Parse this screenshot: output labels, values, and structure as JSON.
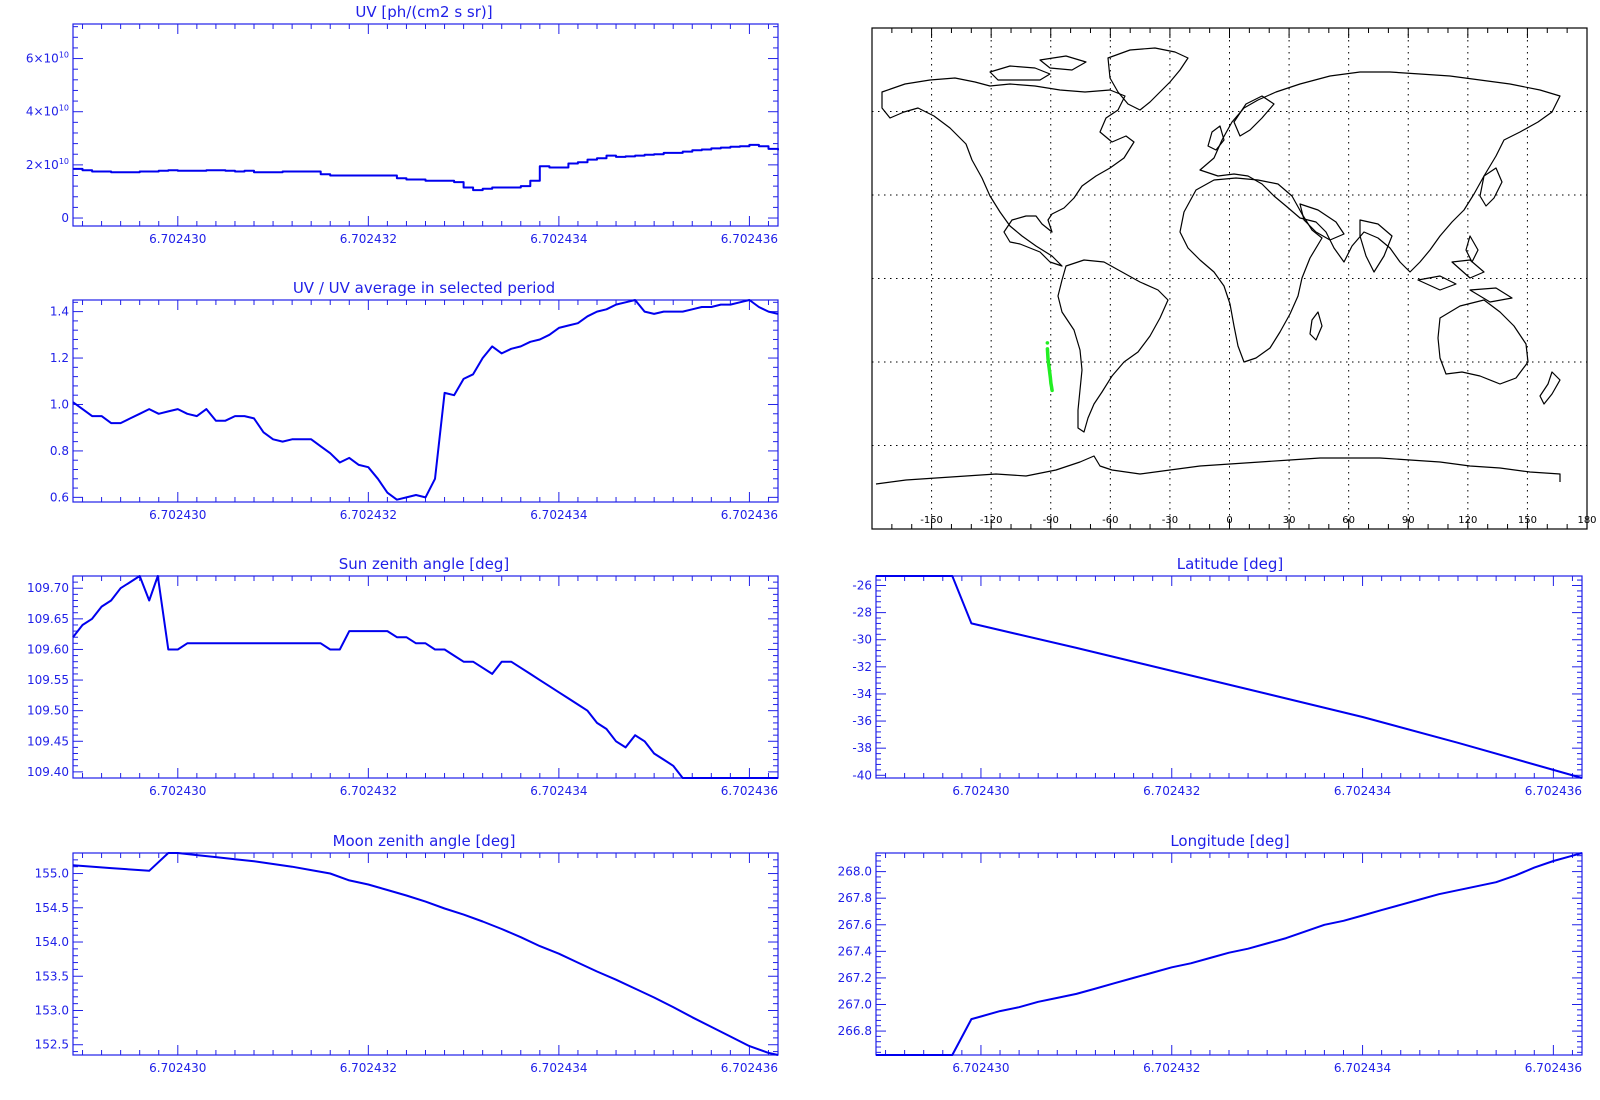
{
  "colors": {
    "axis": "#2020e8",
    "series": "#0000ee",
    "map_axis": "#000000",
    "coast": "#000000",
    "track": "#22ee22"
  },
  "chart_data": [
    {
      "id": "uv",
      "type": "line",
      "step": true,
      "title": "UV [ph/(cm2 s sr)]",
      "xlim": [
        6.7024289,
        6.7024363
      ],
      "ylim": [
        -3000000000.0,
        73000000000.0
      ],
      "xticks": [
        6.70243,
        6.702432,
        6.702434,
        6.702436
      ],
      "xtick_labels": [
        "6.702430",
        "6.702432",
        "6.702434",
        "6.702436"
      ],
      "yticks": [
        0,
        20000000000.0,
        40000000000.0,
        60000000000.0
      ],
      "ytick_labels": [
        {
          "base": "0",
          "exp": ""
        },
        {
          "base": "2×10",
          "exp": "10"
        },
        {
          "base": "4×10",
          "exp": "10"
        },
        {
          "base": "6×10",
          "exp": "10"
        }
      ],
      "x": [
        6.7024289,
        6.702429,
        6.7024291,
        6.7024292,
        6.7024293,
        6.7024294,
        6.7024295,
        6.7024296,
        6.7024297,
        6.7024298,
        6.7024299,
        6.70243,
        6.7024301,
        6.7024302,
        6.7024303,
        6.7024304,
        6.7024305,
        6.7024306,
        6.7024307,
        6.7024308,
        6.7024309,
        6.702431,
        6.7024311,
        6.7024312,
        6.7024313,
        6.7024314,
        6.7024315,
        6.7024316,
        6.7024317,
        6.7024318,
        6.7024319,
        6.702432,
        6.7024321,
        6.7024322,
        6.7024323,
        6.7024324,
        6.7024325,
        6.7024326,
        6.7024327,
        6.7024328,
        6.7024329,
        6.702433,
        6.7024331,
        6.7024332,
        6.7024333,
        6.7024334,
        6.7024335,
        6.7024336,
        6.7024337,
        6.7024338,
        6.7024339,
        6.702434,
        6.7024341,
        6.7024342,
        6.7024343,
        6.7024344,
        6.7024345,
        6.7024346,
        6.7024347,
        6.7024348,
        6.7024349,
        6.702435,
        6.7024351,
        6.7024352,
        6.7024353,
        6.7024354,
        6.7024355,
        6.7024356,
        6.7024357,
        6.7024358,
        6.7024359,
        6.702436,
        6.7024361,
        6.7024362,
        6.7024363
      ],
      "y": [
        18500000000.0,
        18000000000.0,
        17500000000.0,
        17500000000.0,
        17200000000.0,
        17200000000.0,
        17200000000.0,
        17500000000.0,
        17500000000.0,
        17800000000.0,
        18000000000.0,
        17800000000.0,
        17800000000.0,
        17800000000.0,
        18000000000.0,
        18000000000.0,
        17800000000.0,
        17500000000.0,
        17800000000.0,
        17200000000.0,
        17200000000.0,
        17200000000.0,
        17500000000.0,
        17500000000.0,
        17500000000.0,
        17500000000.0,
        16500000000.0,
        16000000000.0,
        16000000000.0,
        16000000000.0,
        16000000000.0,
        16000000000.0,
        16000000000.0,
        16000000000.0,
        15000000000.0,
        14500000000.0,
        14500000000.0,
        14000000000.0,
        14000000000.0,
        14000000000.0,
        13500000000.0,
        11500000000.0,
        10500000000.0,
        11000000000.0,
        11500000000.0,
        11500000000.0,
        11500000000.0,
        12000000000.0,
        14000000000.0,
        19500000000.0,
        19000000000.0,
        19000000000.0,
        20500000000.0,
        21000000000.0,
        22000000000.0,
        22500000000.0,
        23500000000.0,
        23000000000.0,
        23200000000.0,
        23500000000.0,
        23800000000.0,
        24000000000.0,
        24500000000.0,
        24500000000.0,
        25000000000.0,
        25500000000.0,
        25800000000.0,
        26200000000.0,
        26500000000.0,
        26800000000.0,
        27000000000.0,
        27500000000.0,
        27000000000.0,
        26000000000.0,
        25500000000.0
      ]
    },
    {
      "id": "uv-ratio",
      "type": "line",
      "title": "UV / UV average in selected period",
      "xlim": [
        6.7024289,
        6.7024363
      ],
      "ylim": [
        0.58,
        1.45
      ],
      "xticks": [
        6.70243,
        6.702432,
        6.702434,
        6.702436
      ],
      "xtick_labels": [
        "6.702430",
        "6.702432",
        "6.702434",
        "6.702436"
      ],
      "yticks": [
        0.6,
        0.8,
        1.0,
        1.2,
        1.4
      ],
      "ytick_labels": [
        "0.6",
        "0.8",
        "1.0",
        "1.2",
        "1.4"
      ],
      "x": [
        6.7024289,
        6.702429,
        6.7024291,
        6.7024292,
        6.7024293,
        6.7024294,
        6.7024295,
        6.7024296,
        6.7024297,
        6.7024298,
        6.7024299,
        6.70243,
        6.7024301,
        6.7024302,
        6.7024303,
        6.7024304,
        6.7024305,
        6.7024306,
        6.7024307,
        6.7024308,
        6.7024309,
        6.702431,
        6.7024311,
        6.7024312,
        6.7024313,
        6.7024314,
        6.7024315,
        6.7024316,
        6.7024317,
        6.7024318,
        6.7024319,
        6.702432,
        6.7024321,
        6.7024322,
        6.7024323,
        6.7024324,
        6.7024325,
        6.7024326,
        6.7024327,
        6.7024328,
        6.7024329,
        6.702433,
        6.7024331,
        6.7024332,
        6.7024333,
        6.7024334,
        6.7024335,
        6.7024336,
        6.7024337,
        6.7024338,
        6.7024339,
        6.702434,
        6.7024341,
        6.7024342,
        6.7024343,
        6.7024344,
        6.7024345,
        6.7024346,
        6.7024347,
        6.7024348,
        6.7024349,
        6.702435,
        6.7024351,
        6.7024352,
        6.7024353,
        6.7024354,
        6.7024355,
        6.7024356,
        6.7024357,
        6.7024358,
        6.7024359,
        6.702436,
        6.7024361,
        6.7024362,
        6.7024363
      ],
      "y": [
        1.01,
        0.98,
        0.95,
        0.95,
        0.92,
        0.92,
        0.94,
        0.96,
        0.98,
        0.96,
        0.97,
        0.98,
        0.96,
        0.95,
        0.98,
        0.93,
        0.93,
        0.95,
        0.95,
        0.94,
        0.88,
        0.85,
        0.84,
        0.85,
        0.85,
        0.85,
        0.82,
        0.79,
        0.75,
        0.77,
        0.74,
        0.73,
        0.68,
        0.62,
        0.59,
        0.6,
        0.61,
        0.6,
        0.68,
        1.05,
        1.04,
        1.11,
        1.13,
        1.2,
        1.25,
        1.22,
        1.24,
        1.25,
        1.27,
        1.28,
        1.3,
        1.33,
        1.34,
        1.35,
        1.38,
        1.4,
        1.41,
        1.43,
        1.44,
        1.45,
        1.4,
        1.39,
        1.4,
        1.4,
        1.4,
        1.41,
        1.42,
        1.42,
        1.43,
        1.43,
        1.44,
        1.45,
        1.42,
        1.4,
        1.39
      ]
    },
    {
      "id": "sun-zenith",
      "type": "line",
      "title": "Sun zenith angle [deg]",
      "xlim": [
        6.7024289,
        6.7024363
      ],
      "ylim": [
        109.39,
        109.72
      ],
      "xticks": [
        6.70243,
        6.702432,
        6.702434,
        6.702436
      ],
      "xtick_labels": [
        "6.702430",
        "6.702432",
        "6.702434",
        "6.702436"
      ],
      "yticks": [
        109.4,
        109.45,
        109.5,
        109.55,
        109.6,
        109.65,
        109.7
      ],
      "ytick_labels": [
        "109.40",
        "109.45",
        "109.50",
        "109.55",
        "109.60",
        "109.65",
        "109.70"
      ],
      "x": [
        6.7024289,
        6.702429,
        6.7024291,
        6.7024292,
        6.7024293,
        6.7024294,
        6.7024295,
        6.7024296,
        6.7024297,
        6.70242979,
        6.7024299,
        6.70243,
        6.7024301,
        6.7024302,
        6.7024303,
        6.7024304,
        6.7024305,
        6.7024306,
        6.7024307,
        6.7024308,
        6.7024309,
        6.702431,
        6.7024311,
        6.7024312,
        6.7024313,
        6.7024314,
        6.7024315,
        6.7024316,
        6.7024317,
        6.7024318,
        6.7024319,
        6.702432,
        6.7024321,
        6.7024322,
        6.7024323,
        6.7024324,
        6.7024325,
        6.7024326,
        6.7024327,
        6.7024328,
        6.7024329,
        6.702433,
        6.7024331,
        6.7024332,
        6.7024333,
        6.7024334,
        6.7024335,
        6.7024336,
        6.7024337,
        6.7024338,
        6.7024339,
        6.702434,
        6.7024341,
        6.7024342,
        6.7024343,
        6.7024344,
        6.7024345,
        6.7024346,
        6.7024347,
        6.7024348,
        6.7024349,
        6.702435,
        6.7024351,
        6.7024352,
        6.7024353,
        6.7024354,
        6.7024355,
        6.7024356,
        6.7024357,
        6.7024358,
        6.7024359,
        6.702436,
        6.7024361,
        6.7024362,
        6.7024363
      ],
      "y": [
        109.62,
        109.64,
        109.65,
        109.67,
        109.68,
        109.7,
        109.71,
        109.72,
        109.68,
        109.72,
        109.6,
        109.6,
        109.61,
        109.61,
        109.61,
        109.61,
        109.61,
        109.61,
        109.61,
        109.61,
        109.61,
        109.61,
        109.61,
        109.61,
        109.61,
        109.61,
        109.61,
        109.6,
        109.6,
        109.63,
        109.63,
        109.63,
        109.63,
        109.63,
        109.62,
        109.62,
        109.61,
        109.61,
        109.6,
        109.6,
        109.59,
        109.58,
        109.58,
        109.57,
        109.56,
        109.58,
        109.58,
        109.57,
        109.56,
        109.55,
        109.54,
        109.53,
        109.52,
        109.51,
        109.5,
        109.48,
        109.47,
        109.45,
        109.44,
        109.46,
        109.45,
        109.43,
        109.42,
        109.41,
        109.39,
        109.39,
        109.39,
        109.39,
        109.39,
        109.39,
        109.39,
        109.39,
        109.39,
        109.39,
        109.39
      ]
    },
    {
      "id": "latitude",
      "type": "line",
      "title": "Latitude [deg]",
      "xlim": [
        6.7024289,
        6.7024363
      ],
      "ylim": [
        -40.2,
        -25.3
      ],
      "xticks": [
        6.70243,
        6.702432,
        6.702434,
        6.702436
      ],
      "xtick_labels": [
        "6.702430",
        "6.702432",
        "6.702434",
        "6.702436"
      ],
      "yticks": [
        -40,
        -38,
        -36,
        -34,
        -32,
        -30,
        -28,
        -26
      ],
      "ytick_labels": [
        "-40",
        "-38",
        "-36",
        "-34",
        "-32",
        "-30",
        "-28",
        "-26"
      ],
      "x": [
        6.7024289,
        6.7024297,
        6.7024299,
        6.702431,
        6.702432,
        6.702433,
        6.702434,
        6.702435,
        6.7024363
      ],
      "y": [
        -25.3,
        -25.3,
        -28.8,
        -30.6,
        -32.3,
        -34.0,
        -35.7,
        -37.6,
        -40.2
      ]
    },
    {
      "id": "moon-zenith",
      "type": "line",
      "title": "Moon zenith angle [deg]",
      "xlim": [
        6.7024289,
        6.7024363
      ],
      "ylim": [
        152.35,
        155.3
      ],
      "xticks": [
        6.70243,
        6.702432,
        6.702434,
        6.702436
      ],
      "xtick_labels": [
        "6.702430",
        "6.702432",
        "6.702434",
        "6.702436"
      ],
      "yticks": [
        152.5,
        153.0,
        153.5,
        154.0,
        154.5,
        155.0
      ],
      "ytick_labels": [
        "152.5",
        "153.0",
        "153.5",
        "154.0",
        "154.5",
        "155.0"
      ],
      "x": [
        6.7024289,
        6.7024293,
        6.7024297,
        6.7024299,
        6.70243,
        6.7024302,
        6.7024304,
        6.7024306,
        6.7024308,
        6.702431,
        6.7024312,
        6.7024314,
        6.7024316,
        6.7024318,
        6.702432,
        6.7024322,
        6.7024324,
        6.7024326,
        6.7024328,
        6.702433,
        6.7024332,
        6.7024334,
        6.7024336,
        6.7024338,
        6.702434,
        6.7024342,
        6.7024344,
        6.7024346,
        6.7024348,
        6.702435,
        6.7024352,
        6.7024354,
        6.7024356,
        6.7024358,
        6.702436,
        6.7024362,
        6.7024363
      ],
      "y": [
        155.12,
        155.08,
        155.04,
        155.3,
        155.3,
        155.27,
        155.24,
        155.21,
        155.18,
        155.14,
        155.1,
        155.05,
        155.0,
        154.9,
        154.84,
        154.76,
        154.68,
        154.59,
        154.49,
        154.4,
        154.3,
        154.19,
        154.07,
        153.94,
        153.83,
        153.7,
        153.57,
        153.45,
        153.32,
        153.19,
        153.05,
        152.9,
        152.76,
        152.62,
        152.48,
        152.38,
        152.35
      ]
    },
    {
      "id": "longitude",
      "type": "line",
      "title": "Longitude [deg]",
      "xlim": [
        6.7024289,
        6.7024363
      ],
      "ylim": [
        266.62,
        268.14
      ],
      "xticks": [
        6.70243,
        6.702432,
        6.702434,
        6.702436
      ],
      "xtick_labels": [
        "6.702430",
        "6.702432",
        "6.702434",
        "6.702436"
      ],
      "yticks": [
        266.8,
        267.0,
        267.2,
        267.4,
        267.6,
        267.8,
        268.0
      ],
      "ytick_labels": [
        "266.8",
        "267.0",
        "267.2",
        "267.4",
        "267.6",
        "267.8",
        "268.0"
      ],
      "x": [
        6.7024289,
        6.7024297,
        6.7024299,
        6.70243,
        6.7024302,
        6.7024304,
        6.7024306,
        6.7024308,
        6.702431,
        6.7024312,
        6.7024314,
        6.7024316,
        6.7024318,
        6.702432,
        6.7024322,
        6.7024324,
        6.7024326,
        6.7024328,
        6.702433,
        6.7024332,
        6.7024334,
        6.7024336,
        6.7024338,
        6.702434,
        6.7024342,
        6.7024344,
        6.7024346,
        6.7024348,
        6.702435,
        6.7024352,
        6.7024354,
        6.7024356,
        6.7024358,
        6.702436,
        6.7024362,
        6.7024363
      ],
      "y": [
        266.62,
        266.62,
        266.89,
        266.91,
        266.95,
        266.98,
        267.02,
        267.05,
        267.08,
        267.12,
        267.16,
        267.2,
        267.24,
        267.28,
        267.31,
        267.35,
        267.39,
        267.42,
        267.46,
        267.5,
        267.55,
        267.6,
        267.63,
        267.67,
        267.71,
        267.75,
        267.79,
        267.83,
        267.86,
        267.89,
        267.92,
        267.97,
        268.03,
        268.08,
        268.12,
        268.14
      ]
    },
    {
      "id": "track-map",
      "type": "map",
      "title": "",
      "xlim": [
        -180,
        180
      ],
      "ylim": [
        -90,
        90
      ],
      "xticks": [
        -150,
        -120,
        -90,
        -60,
        -30,
        0,
        30,
        60,
        90,
        120,
        150,
        180
      ],
      "xtick_labels": [
        "-150",
        "-120",
        "-90",
        "-60",
        "-30",
        "0",
        "30",
        "60",
        "90",
        "120",
        "150",
        "180"
      ],
      "grid": true,
      "track": {
        "lon": [
          -91.7,
          -91.4,
          -91.1,
          -90.8,
          -90.5,
          -90.2,
          -89.9,
          -89.6,
          -89.3
        ],
        "lat": [
          -25.3,
          -28.8,
          -30.6,
          -32.3,
          -34.0,
          -35.7,
          -37.6,
          -38.8,
          -40.2
        ]
      }
    }
  ]
}
